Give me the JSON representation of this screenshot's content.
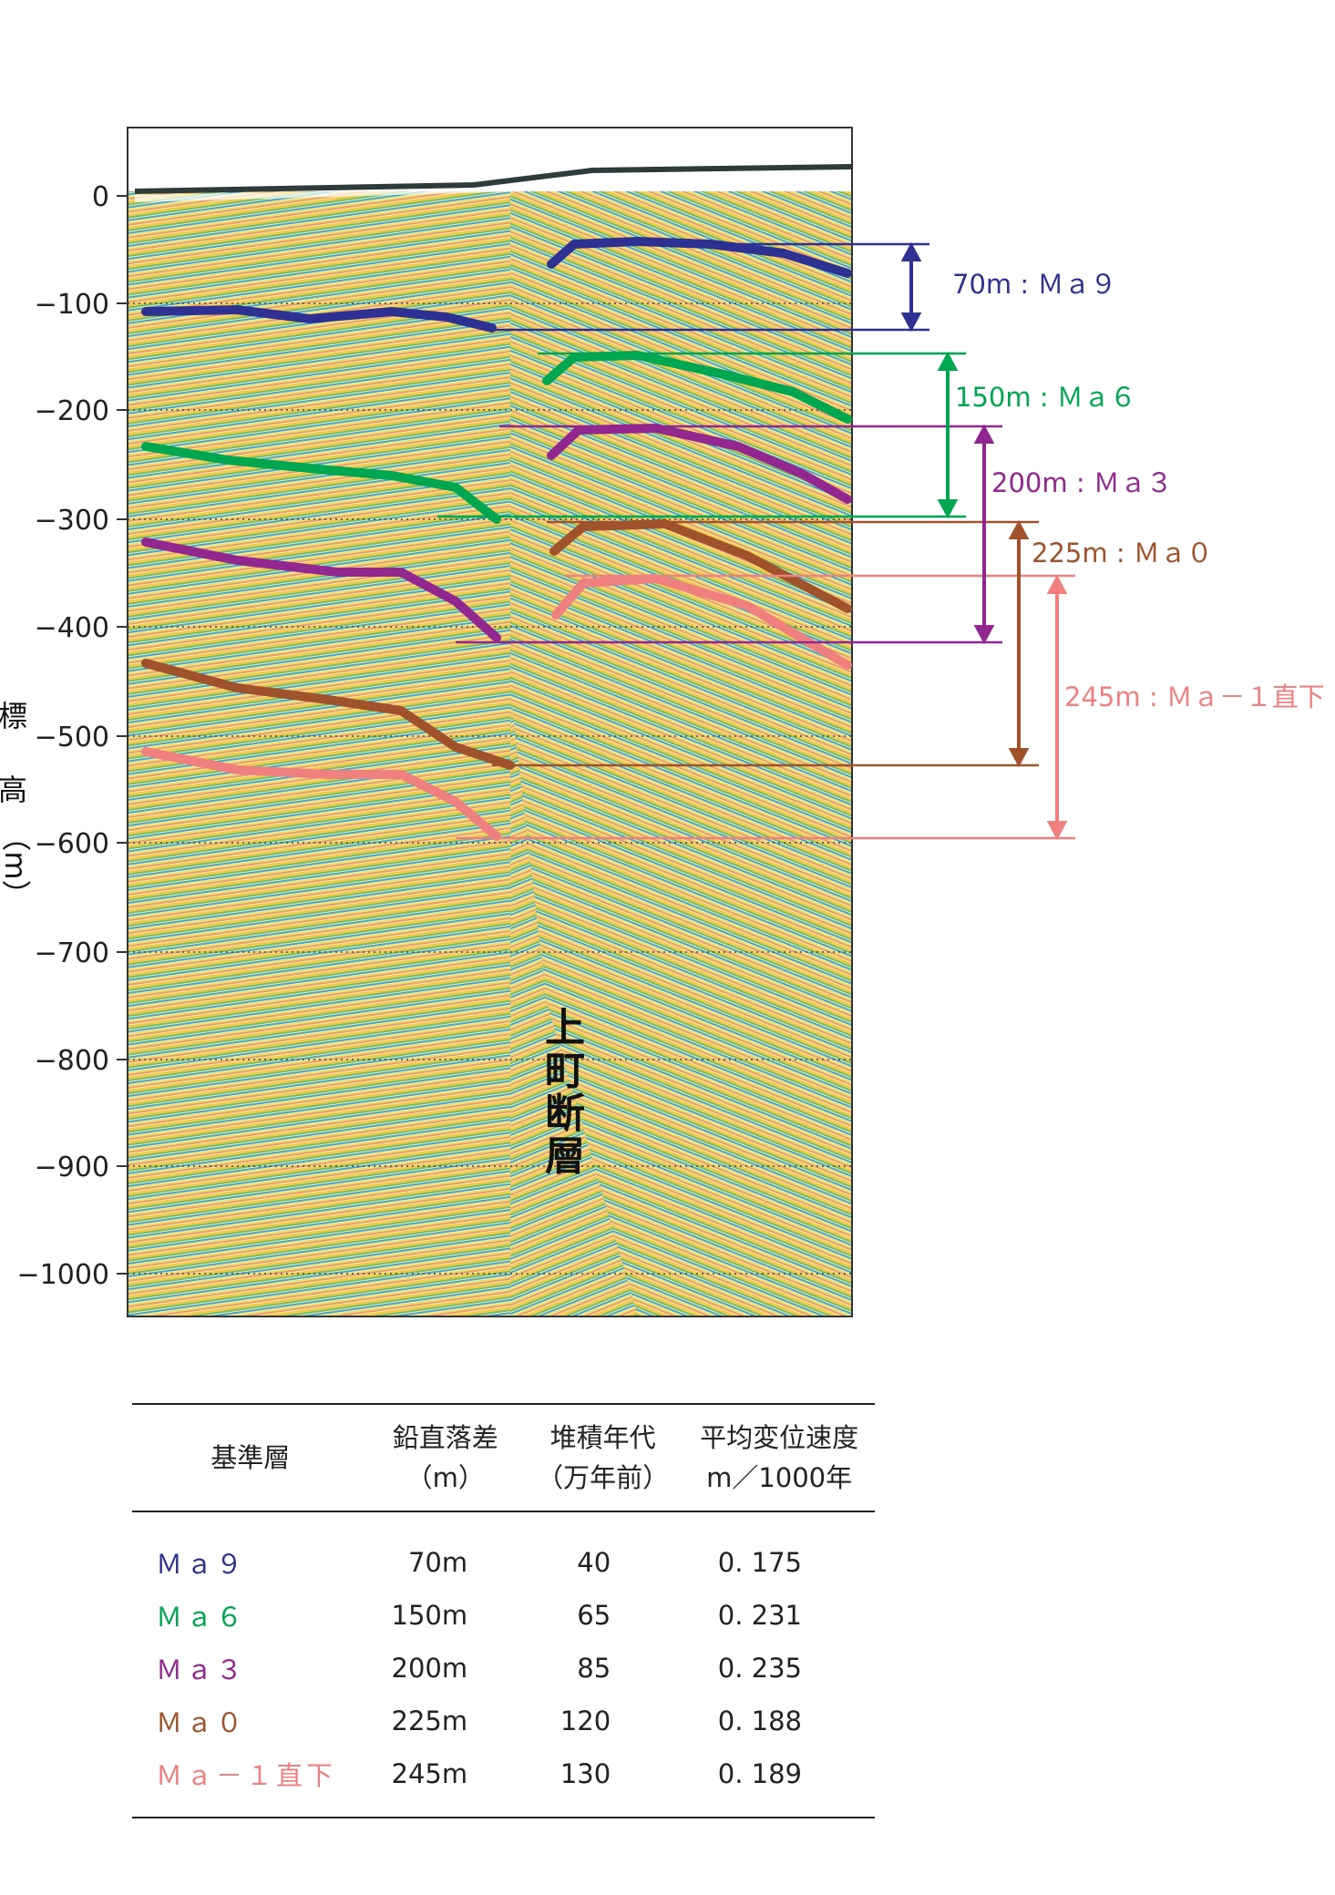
{
  "y_axis": {
    "ticks": [
      "0",
      "−100",
      "−200",
      "−300",
      "−400",
      "−500",
      "−600",
      "−700",
      "−800",
      "−900",
      "−1000"
    ],
    "title_chars": [
      "標",
      "高",
      "（m）"
    ]
  },
  "fault_label_chars": [
    "上",
    "町",
    "断",
    "層"
  ],
  "horizons": [
    {
      "name": "Ma 9",
      "label": "70m : Ｍａ９",
      "color": "#2e3192"
    },
    {
      "name": "Ma 6",
      "label": "150m : Ｍａ６",
      "color": "#00a650"
    },
    {
      "name": "Ma 3",
      "label": "200m : Ｍａ３",
      "color": "#92278f"
    },
    {
      "name": "Ma 0",
      "label": "225m : Ｍａ０",
      "color": "#a0522d"
    },
    {
      "name": "Ma-1",
      "label": "245m : Ｍａ－１直下",
      "color": "#f08080"
    }
  ],
  "table": {
    "headers": [
      "基準層",
      "鉛直落差\n（m）",
      "堆積年代\n（万年前）",
      "平均変位速度\nm／1000年"
    ],
    "rows": [
      {
        "name": "Ｍａ９",
        "offset": "70m",
        "age": "40",
        "rate": "0. 175",
        "color": "#2e3192"
      },
      {
        "name": "Ｍａ６",
        "offset": "150m",
        "age": "65",
        "rate": "0. 231",
        "color": "#00a650"
      },
      {
        "name": "Ｍａ３",
        "offset": "200m",
        "age": "85",
        "rate": "0. 235",
        "color": "#92278f"
      },
      {
        "name": "Ｍａ０",
        "offset": "225m",
        "age": "120",
        "rate": "0. 188",
        "color": "#a0522d"
      },
      {
        "name": "Ｍａ－１直下",
        "offset": "245m",
        "age": "130",
        "rate": "0. 189",
        "color": "#f08080"
      }
    ]
  }
}
